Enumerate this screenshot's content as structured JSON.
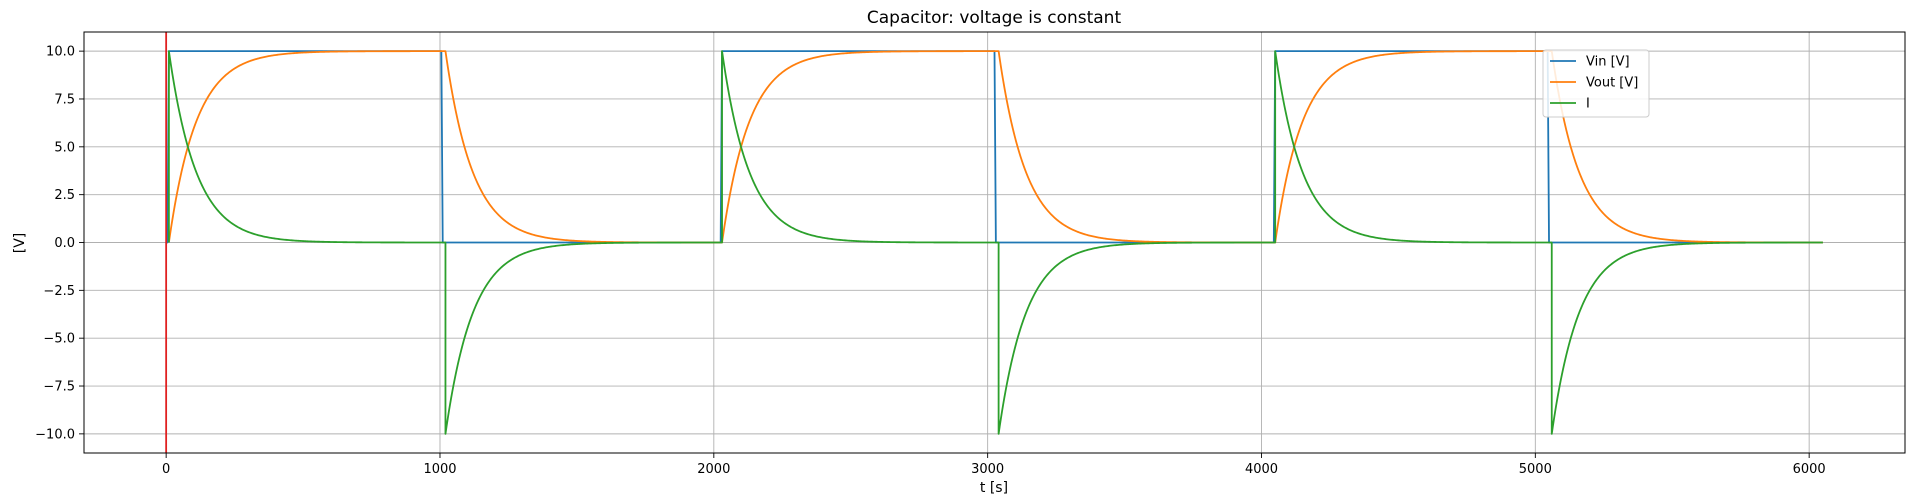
{
  "chart_data": {
    "type": "line",
    "title": "Capacitor: voltage is constant",
    "xlabel": "t [s]",
    "ylabel": "[V]",
    "xlim": [
      -300,
      6350
    ],
    "ylim": [
      -11,
      11
    ],
    "xticks": [
      0,
      1000,
      2000,
      3000,
      4000,
      5000,
      6000
    ],
    "yticks": [
      10.0,
      7.5,
      5.0,
      2.5,
      0.0,
      -2.5,
      -5.0,
      -7.5,
      -10.0
    ],
    "xtick_labels": [
      "0",
      "1000",
      "2000",
      "3000",
      "4000",
      "5000",
      "6000"
    ],
    "ytick_labels": [
      "10.0",
      "7.5",
      "5.0",
      "2.5",
      "0.0",
      "−2.5",
      "−5.0",
      "−7.5",
      "−10.0"
    ],
    "grid": true,
    "legend": {
      "position": "upper-right",
      "entries": [
        "Vin [V]",
        "Vout [V]",
        "I"
      ]
    },
    "vertical_marker": {
      "x": 0,
      "color": "#e02020"
    },
    "time_constant": 100,
    "period": 2020,
    "series": [
      {
        "name": "Vin [V]",
        "color": "#1f77b4",
        "points": [
          [
            0,
            0
          ],
          [
            5,
            0
          ],
          [
            10,
            10
          ],
          [
            1005,
            10
          ],
          [
            1010,
            0
          ],
          [
            2020,
            0
          ],
          [
            2025,
            0
          ],
          [
            2030,
            10
          ],
          [
            3025,
            10
          ],
          [
            3030,
            0
          ],
          [
            4040,
            0
          ],
          [
            4045,
            0
          ],
          [
            4050,
            10
          ],
          [
            5045,
            10
          ],
          [
            5050,
            0
          ],
          [
            6050,
            0
          ]
        ]
      },
      {
        "name": "Vout [V]",
        "color": "#ff7f0e",
        "segments": [
          {
            "kind": "charge",
            "t0": 10,
            "t1": 1020,
            "from": 0,
            "to": 10
          },
          {
            "kind": "discharge",
            "t0": 1020,
            "t1": 2030,
            "from": 10,
            "to": 0
          },
          {
            "kind": "charge",
            "t0": 2030,
            "t1": 3040,
            "from": 0,
            "to": 10
          },
          {
            "kind": "discharge",
            "t0": 3040,
            "t1": 4050,
            "from": 10,
            "to": 0
          },
          {
            "kind": "charge",
            "t0": 4050,
            "t1": 5060,
            "from": 0,
            "to": 10
          },
          {
            "kind": "discharge",
            "t0": 5060,
            "t1": 6050,
            "from": 10,
            "to": 0
          }
        ]
      },
      {
        "name": "I",
        "color": "#2ca02c",
        "segments": [
          {
            "kind": "decay",
            "t0": 10,
            "t1": 1015,
            "peak": 10
          },
          {
            "kind": "decay",
            "t0": 1020,
            "t1": 2025,
            "peak": -10
          },
          {
            "kind": "decay",
            "t0": 2030,
            "t1": 3035,
            "peak": 10
          },
          {
            "kind": "decay",
            "t0": 3040,
            "t1": 4045,
            "peak": -10
          },
          {
            "kind": "decay",
            "t0": 4050,
            "t1": 5055,
            "peak": 10
          },
          {
            "kind": "decay",
            "t0": 5060,
            "t1": 6050,
            "peak": -10
          }
        ]
      }
    ]
  }
}
